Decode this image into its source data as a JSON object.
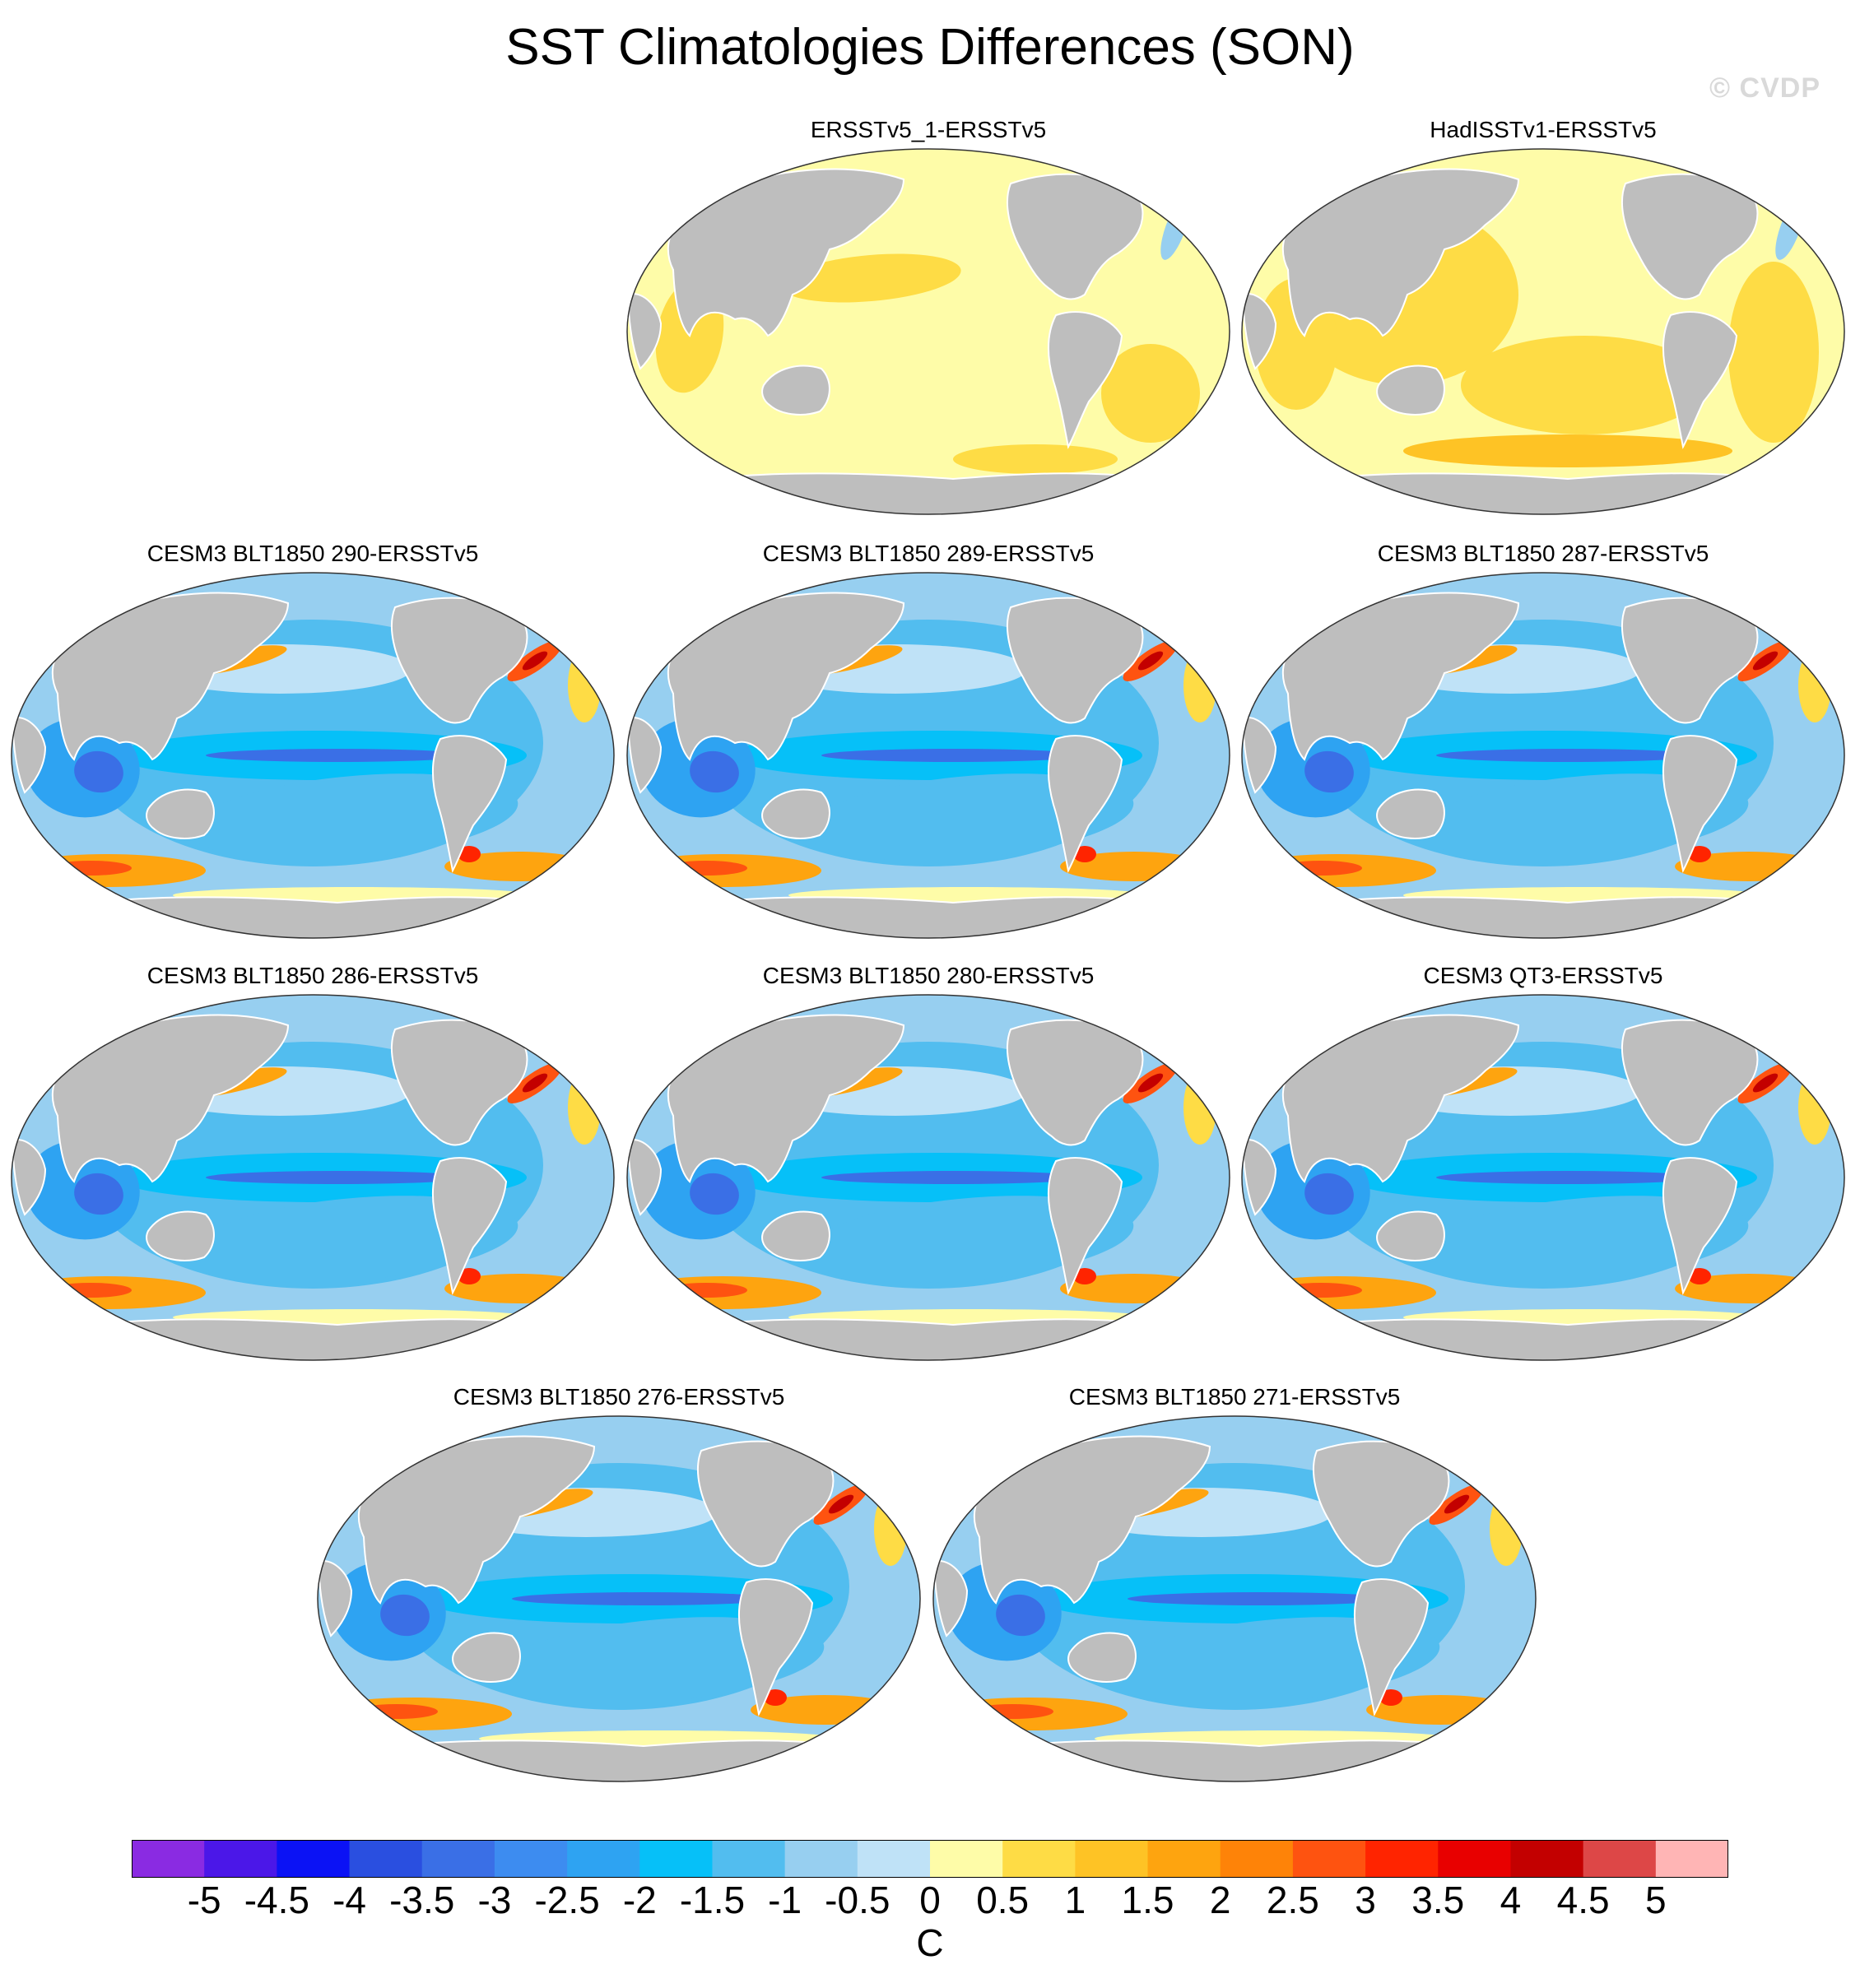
{
  "title": "SST Climatologies Differences (SON)",
  "watermark": "© CVDP",
  "panels": [
    {
      "title": "ERSSTv5_1-ERSSTv5",
      "pattern": "small_warm"
    },
    {
      "title": "HadISSTv1-ERSSTv5",
      "pattern": "warm"
    },
    {
      "title": "CESM3 BLT1850 290-ERSSTv5",
      "pattern": "model_cold"
    },
    {
      "title": "CESM3 BLT1850 289-ERSSTv5",
      "pattern": "model_cold"
    },
    {
      "title": "CESM3 BLT1850 287-ERSSTv5",
      "pattern": "model_cold"
    },
    {
      "title": "CESM3 BLT1850 286-ERSSTv5",
      "pattern": "model_cold"
    },
    {
      "title": "CESM3 BLT1850 280-ERSSTv5",
      "pattern": "model_cold"
    },
    {
      "title": "CESM3 QT3-ERSSTv5",
      "pattern": "model_cold"
    },
    {
      "title": "CESM3 BLT1850 276-ERSSTv5",
      "pattern": "model_cold"
    },
    {
      "title": "CESM3 BLT1850 271-ERSSTv5",
      "pattern": "model_cold"
    }
  ],
  "colorbar": {
    "units": "C",
    "tick_labels": [
      "-5",
      "-4.5",
      "-4",
      "-3.5",
      "-3",
      "-2.5",
      "-2",
      "-1.5",
      "-1",
      "-0.5",
      "0",
      "0.5",
      "1",
      "1.5",
      "2",
      "2.5",
      "3",
      "3.5",
      "4",
      "4.5",
      "5"
    ],
    "colors": [
      "#8a2be2",
      "#4b17e8",
      "#0b12f5",
      "#2a4fe0",
      "#3a6fe6",
      "#3d8cf0",
      "#2ea3f2",
      "#06c0f8",
      "#52bdef",
      "#97cff0",
      "#bfe2f7",
      "#fefca8",
      "#fedc45",
      "#fec325",
      "#fea40f",
      "#fe8308",
      "#fe5310",
      "#ff2400",
      "#e80000",
      "#c30000",
      "#dd4747",
      "#ffb5b5"
    ],
    "land_color": "#bebebe",
    "colormap_name": "diverging blue-red"
  }
}
